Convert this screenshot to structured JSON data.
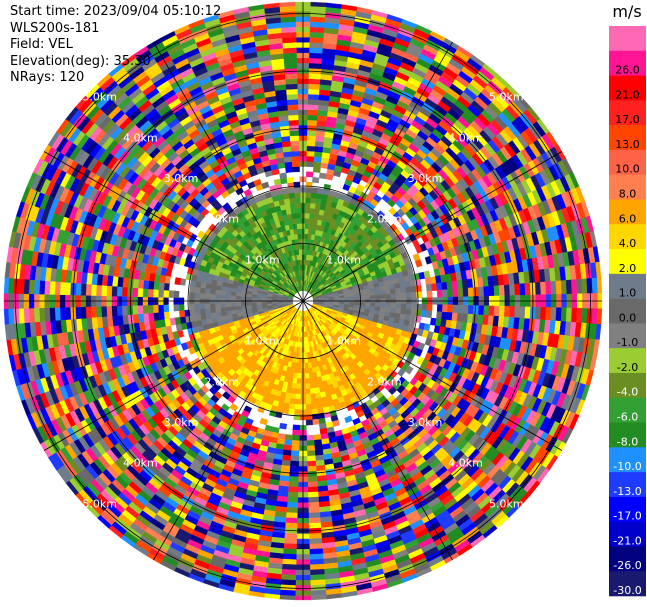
{
  "info": {
    "start_time": "Start time: 2023/09/04 05:10:12",
    "site": "WLS200s-181",
    "field": "Field: VEL",
    "elevation": "Elevation(deg): 35.30",
    "nrays": "NRays: 120"
  },
  "chart_data": {
    "type": "heatmap",
    "projection": "polar PPI",
    "field": "VEL",
    "units": "m/s",
    "range_rings_km": [
      1.0,
      2.0,
      3.0,
      4.0,
      5.0
    ],
    "range_ring_labels": [
      "1.0km",
      "2.0km",
      "3.0km",
      "4.0km",
      "5.0km"
    ],
    "max_range_km": 5.2,
    "nrays": 120,
    "colorbar": {
      "unit": "m/s",
      "levels": [
        -30.0,
        -26.0,
        -21.0,
        -17.0,
        -13.0,
        -10.0,
        -8.0,
        -6.0,
        -4.0,
        -2.0,
        -1.0,
        0.0,
        1.0,
        2.0,
        4.0,
        6.0,
        8.0,
        10.0,
        13.0,
        17.0,
        21.0,
        26.0
      ],
      "labels": [
        "-30.0",
        "-26.0",
        "-21.0",
        "-17.0",
        "-13.0",
        "-10.0",
        "-8.0",
        "-6.0",
        "-4.0",
        "-2.0",
        "-1.0",
        "0.0",
        "1.0",
        "2.0",
        "4.0",
        "6.0",
        "8.0",
        "10.0",
        "13.0",
        "17.0",
        "21.0",
        "26.0"
      ],
      "colors": [
        "#191970",
        "#000080",
        "#0000cd",
        "#0000ff",
        "#1e3cff",
        "#1e90ff",
        "#228b22",
        "#32a032",
        "#6b8e23",
        "#9acd32",
        "#808080",
        "#696969",
        "#6e7b8b",
        "#ffff00",
        "#ffd700",
        "#ffa500",
        "#ff7f50",
        "#ff6347",
        "#ff4500",
        "#ff2020",
        "#ff0000",
        "#ff1493",
        "#ff69b4"
      ]
    },
    "near_field_pattern": {
      "north_sector": "green (-4 to -8 m/s)",
      "south_sector": "yellow/orange (2 to 6 m/s)",
      "east_west_band": "gray (about 0 m/s)",
      "far_field": "noisy, all colors"
    }
  }
}
